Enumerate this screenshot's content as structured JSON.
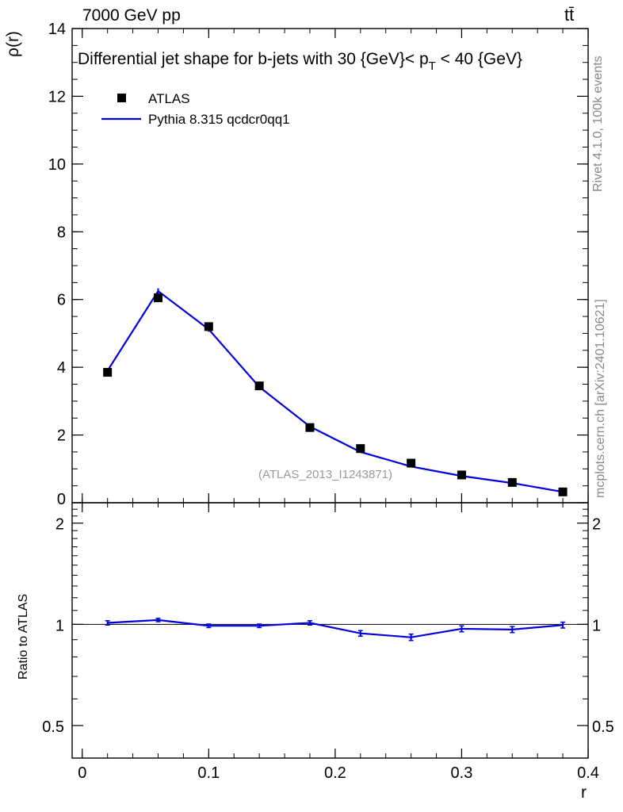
{
  "header": {
    "left": "7000 GeV pp",
    "right": "tt̄"
  },
  "side_labels": {
    "rivet": "Rivet 4.1.0,  100k events",
    "mcplots": "mcplots.cern.ch [arXiv:2401.10621]"
  },
  "chart_data": {
    "type": "scatter",
    "title": "Differential jet shape for b-jets with 30 {GeV}< p_T < 40 {GeV}",
    "title_main": "Differential jet shape for b-jets with 30 {GeV}< p",
    "title_sub": "T",
    "title_tail": " < 40 {GeV}",
    "xlabel": "r",
    "ylabel": "ρ(r)",
    "ratio_ylabel": "Ratio to ATLAS",
    "analysis_tag": "(ATLAS_2013_I1243871)",
    "xlim": [
      -0.008,
      0.4
    ],
    "ylim": [
      0,
      14
    ],
    "ratio_ylim": [
      0.4,
      2.3
    ],
    "x_ticks": [
      "0",
      "0.1",
      "0.2",
      "0.3",
      "0.4"
    ],
    "x_tick_values": [
      0,
      0.1,
      0.2,
      0.3,
      0.4
    ],
    "y_ticks": [
      "0",
      "2",
      "4",
      "6",
      "8",
      "10",
      "12",
      "14"
    ],
    "y_tick_values": [
      0,
      2,
      4,
      6,
      8,
      10,
      12,
      14
    ],
    "ratio_ticks": [
      "0.5",
      "1",
      "2"
    ],
    "ratio_tick_values": [
      0.5,
      1,
      2
    ],
    "legend": {
      "position": "top-left",
      "entries": [
        "ATLAS",
        "Pythia 8.315 qcdcr0qq1"
      ]
    },
    "series": [
      {
        "name": "ATLAS",
        "style": "markers",
        "color": "#000000",
        "x": [
          0.02,
          0.06,
          0.1,
          0.14,
          0.18,
          0.22,
          0.26,
          0.3,
          0.34,
          0.38
        ],
        "values": [
          3.85,
          6.05,
          5.2,
          3.45,
          2.22,
          1.6,
          1.17,
          0.82,
          0.6,
          0.32
        ]
      },
      {
        "name": "Pythia 8.315 qcdcr0qq1",
        "style": "line",
        "color": "#0000dd",
        "x": [
          0.02,
          0.06,
          0.1,
          0.14,
          0.18,
          0.22,
          0.26,
          0.3,
          0.34,
          0.38
        ],
        "values": [
          3.9,
          6.25,
          5.12,
          3.42,
          2.25,
          1.5,
          1.07,
          0.79,
          0.58,
          0.32
        ],
        "errors": [
          0.05,
          0.08,
          0.07,
          0.05,
          0.04,
          0.03,
          0.03,
          0.02,
          0.02,
          0.01
        ],
        "ratio": [
          1.01,
          1.03,
          0.99,
          0.99,
          1.01,
          0.94,
          0.915,
          0.97,
          0.965,
          0.995
        ],
        "ratio_errors": [
          0.015,
          0.012,
          0.012,
          0.012,
          0.015,
          0.018,
          0.02,
          0.02,
          0.02,
          0.02
        ]
      }
    ]
  }
}
